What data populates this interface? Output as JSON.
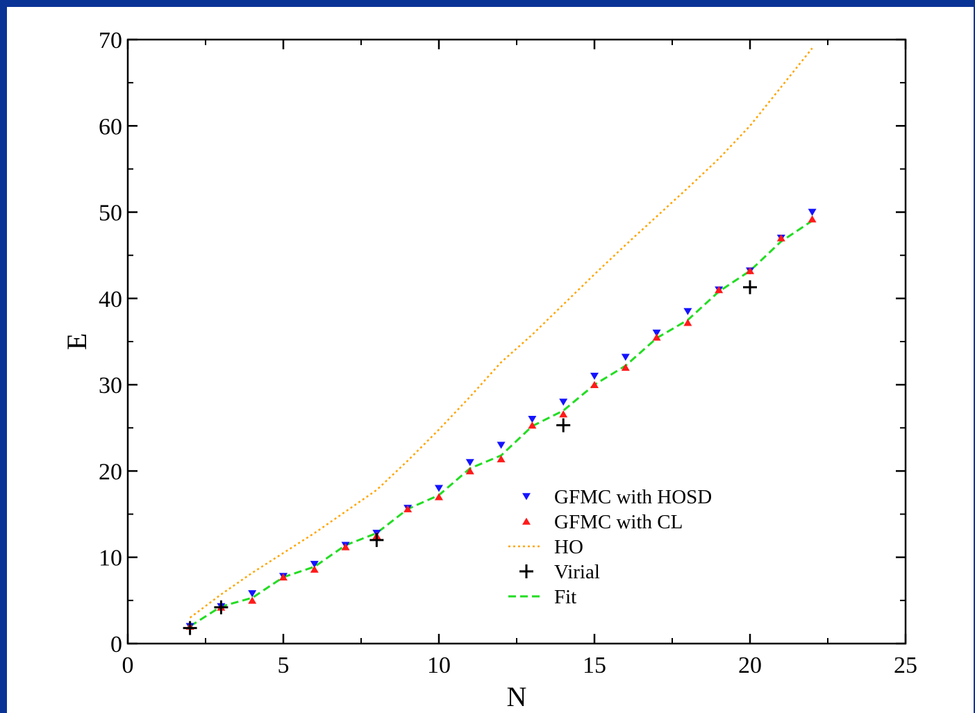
{
  "colors": {
    "background": "#0a3396",
    "hosd": "#1414ff",
    "cl": "#ff1a1a",
    "ho": "#ffa500",
    "virial": "#000000",
    "fit": "#22dd22"
  },
  "chart_data": {
    "type": "scatter",
    "title": "",
    "xlabel": "N",
    "ylabel": "E",
    "xlim": [
      0,
      25
    ],
    "ylim": [
      0,
      70
    ],
    "xticks": [
      "0",
      "5",
      "10",
      "15",
      "20",
      "25"
    ],
    "yticks": [
      "0",
      "10",
      "20",
      "30",
      "40",
      "50",
      "60",
      "70"
    ],
    "grid": false,
    "legend_position": "lower-right",
    "series": [
      {
        "name": "GFMC with HOSD",
        "marker": "triangle-down",
        "color": "#1414ff",
        "x": [
          2,
          3,
          4,
          5,
          6,
          7,
          8,
          9,
          10,
          11,
          12,
          13,
          14,
          15,
          16,
          17,
          18,
          19,
          20,
          21,
          22
        ],
        "y": [
          2.0,
          4.3,
          5.8,
          7.8,
          9.2,
          11.4,
          12.8,
          15.7,
          18.0,
          21.0,
          23.0,
          26.0,
          28.0,
          31.0,
          33.2,
          36.0,
          38.5,
          41.0,
          43.2,
          47.0,
          50.0
        ]
      },
      {
        "name": "GFMC with CL",
        "marker": "triangle-up",
        "color": "#ff1a1a",
        "x": [
          2,
          3,
          4,
          5,
          6,
          7,
          8,
          9,
          10,
          11,
          12,
          13,
          14,
          15,
          16,
          17,
          18,
          19,
          20,
          21,
          22
        ],
        "y": [
          2.0,
          4.2,
          5.0,
          7.7,
          8.6,
          11.2,
          12.5,
          15.6,
          17.0,
          20.0,
          21.4,
          25.3,
          26.6,
          30.0,
          32.0,
          35.5,
          37.2,
          41.0,
          43.2,
          47.0,
          49.2
        ]
      },
      {
        "name": "HO",
        "style": "dotted-line",
        "color": "#ffa500",
        "x": [
          2,
          3,
          4,
          5,
          6,
          7,
          8,
          9,
          10,
          11,
          12,
          13,
          14,
          15,
          16,
          17,
          18,
          19,
          20,
          21,
          22
        ],
        "y": [
          3.0,
          5.7,
          8.2,
          10.5,
          12.8,
          15.3,
          17.8,
          21.2,
          24.8,
          28.6,
          32.6,
          35.8,
          39.3,
          42.8,
          46.2,
          49.5,
          52.8,
          56.2,
          60.0,
          64.5,
          69.0
        ]
      },
      {
        "name": "Virial",
        "marker": "plus",
        "color": "#000000",
        "x": [
          2,
          3,
          8,
          14,
          20
        ],
        "y": [
          1.8,
          4.2,
          12.0,
          25.3,
          41.3
        ]
      },
      {
        "name": "Fit",
        "style": "dashed-line",
        "color": "#22dd22",
        "x": [
          2,
          3,
          4,
          5,
          6,
          7,
          8,
          9,
          10,
          11,
          12,
          13,
          14,
          15,
          16,
          17,
          18,
          19,
          20,
          21,
          22
        ],
        "y": [
          2.0,
          4.3,
          5.3,
          7.7,
          8.9,
          11.4,
          12.8,
          15.6,
          17.2,
          20.3,
          21.8,
          25.2,
          27.0,
          30.0,
          32.2,
          35.4,
          37.5,
          40.8,
          43.2,
          46.6,
          49.0
        ]
      }
    ]
  }
}
